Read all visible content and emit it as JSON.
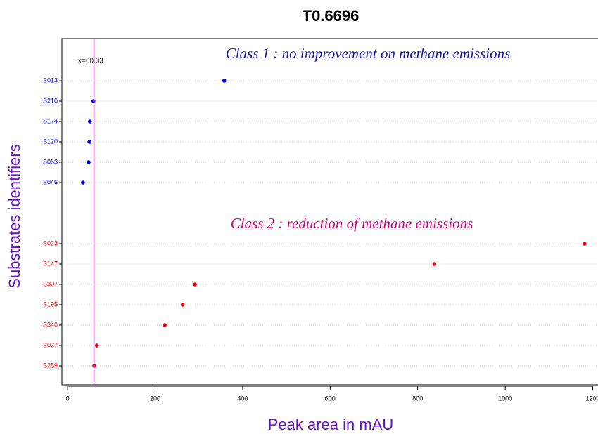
{
  "chart_data": {
    "type": "dot",
    "title": "T0.6696",
    "x_label": "Peak area in mAU",
    "y_label": "Substrates identifiers",
    "xlim": [
      -13,
      1212
    ],
    "xticks": [
      0,
      200,
      400,
      600,
      800,
      1000,
      1200
    ],
    "vline": {
      "value": 60.33,
      "label": "x=60.33",
      "color": "#e040e0"
    },
    "grid": true,
    "series": [
      {
        "name": "Class 1 : no improvement on methane emissions",
        "color": "#0000ee",
        "label_color": "#1a1aa8",
        "categories": [
          "S013",
          "S210",
          "S174",
          "S120",
          "S053",
          "S046"
        ],
        "values": [
          358,
          59,
          51,
          50,
          48,
          35
        ]
      },
      {
        "name": "Class 2 : reduction of methane emissions",
        "color": "#ee0000",
        "label_color": "#cc0077",
        "categories": [
          "S023",
          "S147",
          "S307",
          "S195",
          "S340",
          "S037",
          "S259"
        ],
        "values": [
          1181,
          838,
          291,
          263,
          222,
          67,
          61
        ]
      }
    ]
  }
}
